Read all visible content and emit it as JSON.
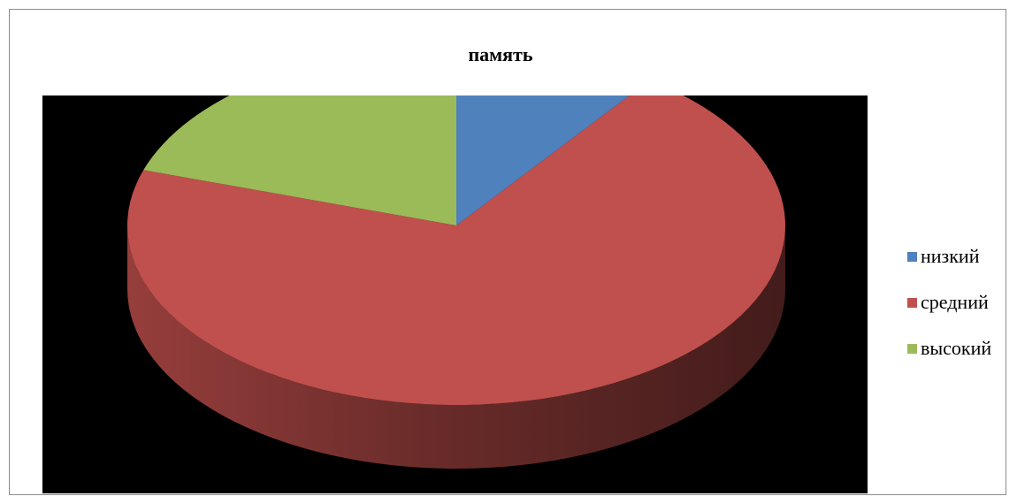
{
  "chart_data": {
    "type": "pie",
    "title": "память",
    "three_d": true,
    "legend_position": "right",
    "categories": [
      "низкий",
      "средний",
      "высокий"
    ],
    "values": [
      10,
      70,
      20
    ],
    "colors": [
      "#4f81bd",
      "#c0504d",
      "#9bbb59"
    ],
    "plot_background": "#000000"
  }
}
